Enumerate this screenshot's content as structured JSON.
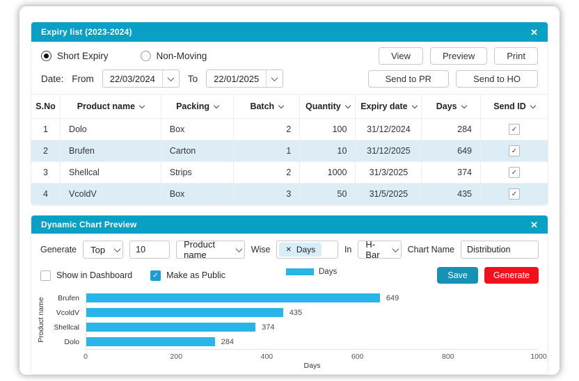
{
  "icons": {
    "close": "✕",
    "check": "✓",
    "tag_close": "✕"
  },
  "colors": {
    "accent": "#0aa0c5",
    "bar": "#29b5e8",
    "row_alt": "#ddedf6",
    "save_btn": "#1791b5",
    "generate_btn": "#f2101c",
    "checkbox_checked": "#1e9cd7",
    "tag_bg": "#d8edf8"
  },
  "expiry_panel": {
    "title": "Expiry list (2023-2024)",
    "radios": [
      {
        "label": "Short Expiry",
        "selected": true
      },
      {
        "label": "Non-Moving",
        "selected": false
      }
    ],
    "buttons_row1": {
      "view": "View",
      "preview": "Preview",
      "print": "Print"
    },
    "buttons_row2": {
      "send_pr": "Send to PR",
      "send_ho": "Send to HO"
    },
    "date": {
      "label": "Date:",
      "from_label": "From",
      "from_value": "22/03/2024",
      "to_label": "To",
      "to_value": "22/01/2025"
    },
    "table": {
      "columns": [
        {
          "label": "S.No",
          "sortable": false,
          "align": "center"
        },
        {
          "label": "Product name",
          "sortable": true,
          "align": "left"
        },
        {
          "label": "Packing",
          "sortable": true,
          "align": "left"
        },
        {
          "label": "Batch",
          "sortable": true,
          "align": "right"
        },
        {
          "label": "Quantity",
          "sortable": true,
          "align": "right"
        },
        {
          "label": "Expiry date",
          "sortable": true,
          "align": "center"
        },
        {
          "label": "Days",
          "sortable": true,
          "align": "right"
        },
        {
          "label": "Send ID",
          "sortable": true,
          "align": "center"
        }
      ],
      "rows": [
        {
          "cells": [
            "1",
            "Dolo",
            "Box",
            "2",
            "100",
            "31/12/2024",
            "284"
          ],
          "send_id": true
        },
        {
          "cells": [
            "2",
            "Brufen",
            "Carton",
            "1",
            "10",
            "31/12/2025",
            "649"
          ],
          "send_id": true
        },
        {
          "cells": [
            "3",
            "Shellcal",
            "Strips",
            "2",
            "1000",
            "31/3/2025",
            "374"
          ],
          "send_id": true
        },
        {
          "cells": [
            "4",
            "VcoldV",
            "Box",
            "3",
            "50",
            "31/5/2025",
            "435"
          ],
          "send_id": true
        }
      ]
    }
  },
  "chart_panel": {
    "title": "Dynamic Chart Preview",
    "generate_label": "Generate",
    "top_select_value": "Top",
    "count_value": "10",
    "field_select_value": "Product name",
    "wise_label": "Wise",
    "wise_tag": "Days",
    "in_label": "In",
    "type_select_value": "H-Bar",
    "chart_name_label": "Chart Name",
    "chart_name_value": "Distribution",
    "show_in_dashboard": {
      "label": "Show in Dashboard",
      "checked": false
    },
    "make_as_public": {
      "label": "Make as Public",
      "checked": true
    },
    "legend_label": "Days",
    "save_label": "Save",
    "generate_btn_label": "Generate"
  },
  "chart_data": {
    "type": "bar",
    "orientation": "horizontal",
    "title": "Distribution",
    "categories": [
      "Brufen",
      "VcoldV",
      "Shellcal",
      "Dolo"
    ],
    "series": [
      {
        "name": "Days",
        "values": [
          649,
          435,
          374,
          284
        ]
      }
    ],
    "xlabel": "Days",
    "ylabel": "Product name",
    "xlim": [
      0,
      1000
    ],
    "xticks": [
      0,
      200,
      400,
      600,
      800,
      1000
    ],
    "grid": false,
    "legend_position": "top-center",
    "bar_color": "#29b5e8"
  }
}
